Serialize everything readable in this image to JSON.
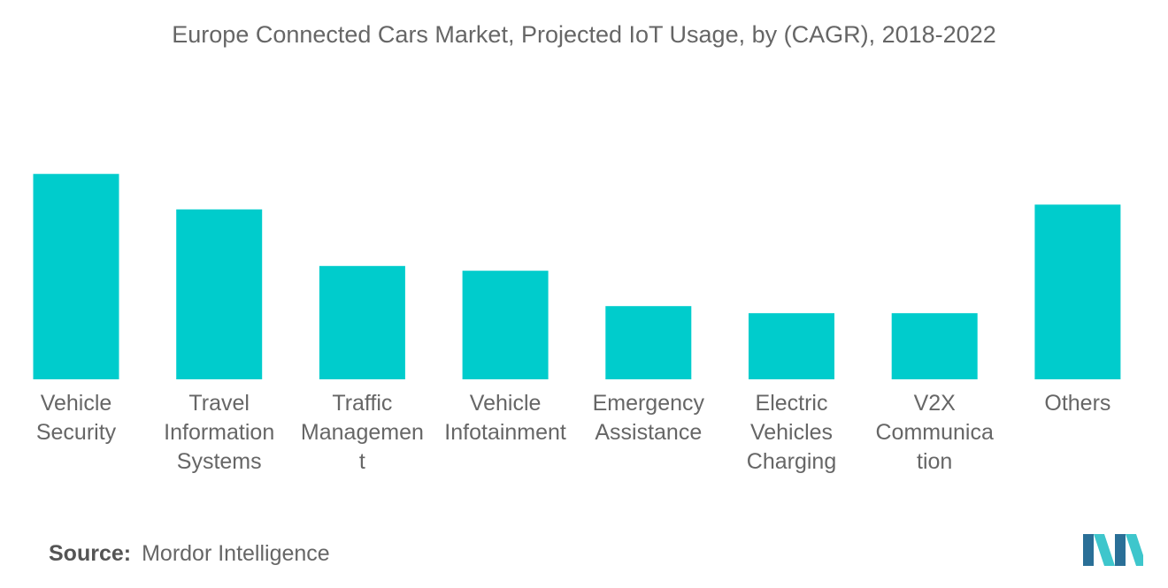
{
  "colors": {
    "bar": "#00CCCC",
    "text": "#666666",
    "logo_dark": "#2A6F97",
    "logo_light": "#3EC6CC"
  },
  "chart_data": {
    "type": "bar",
    "title": "Europe Connected Cars Market, Projected IoT Usage, by (CAGR), 2018-2022",
    "xlabel": "",
    "ylabel": "",
    "ylim": [
      0,
      100
    ],
    "grid": false,
    "legend": "none",
    "categories": [
      [
        "Vehicle",
        "Security"
      ],
      [
        "Travel",
        "Information",
        "Systems"
      ],
      [
        "Traffic",
        "Managemen",
        "t"
      ],
      [
        "Vehicle",
        "Infotainment"
      ],
      [
        "Emergency",
        "Assistance"
      ],
      [
        "Electric",
        "Vehicles",
        "Charging"
      ],
      [
        "V2X",
        "Communica",
        "tion"
      ],
      [
        "Others"
      ]
    ],
    "values": [
      87,
      72,
      48,
      46,
      31,
      28,
      28,
      74
    ]
  },
  "source": {
    "label": "Source:",
    "value": "Mordor Intelligence"
  }
}
